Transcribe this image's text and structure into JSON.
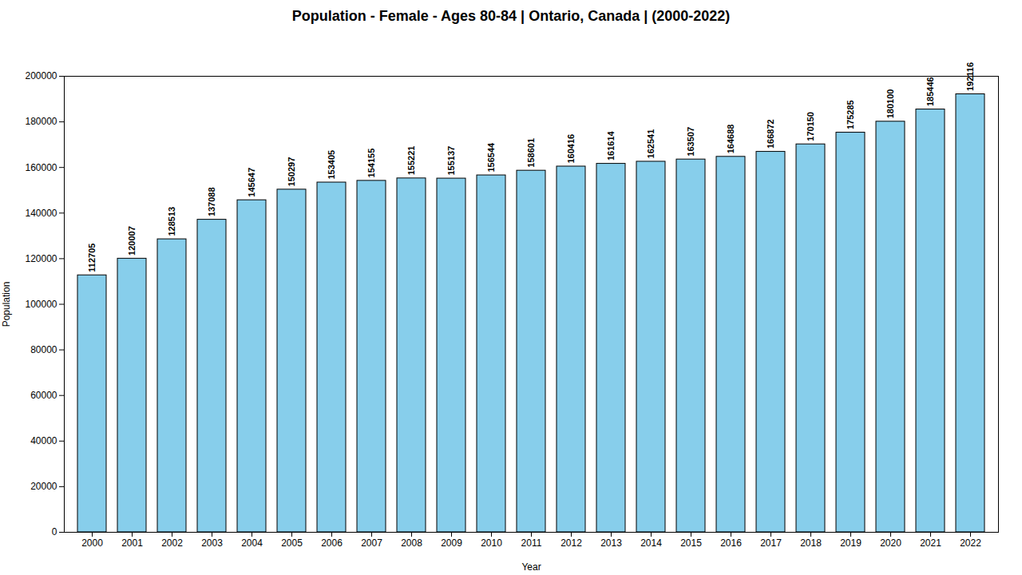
{
  "chart_data": {
    "type": "bar",
    "title": "Population - Female - Ages 80-84 | Ontario, Canada |  (2000-2022)",
    "xlabel": "Year",
    "ylabel": "Population",
    "categories": [
      "2000",
      "2001",
      "2002",
      "2003",
      "2004",
      "2005",
      "2006",
      "2007",
      "2008",
      "2009",
      "2010",
      "2011",
      "2012",
      "2013",
      "2014",
      "2015",
      "2016",
      "2017",
      "2018",
      "2019",
      "2020",
      "2021",
      "2022"
    ],
    "values": [
      112705,
      120007,
      128513,
      137088,
      145647,
      150297,
      153405,
      154155,
      155221,
      155137,
      156544,
      158601,
      160416,
      161614,
      162541,
      163507,
      164688,
      166872,
      170150,
      175285,
      180100,
      185446,
      192116
    ],
    "color": "#87CEEB",
    "ylim": [
      0,
      200000
    ],
    "yticks": [
      0,
      20000,
      40000,
      60000,
      80000,
      100000,
      120000,
      140000,
      160000,
      180000,
      200000
    ],
    "grid": false,
    "data_labels": true
  }
}
